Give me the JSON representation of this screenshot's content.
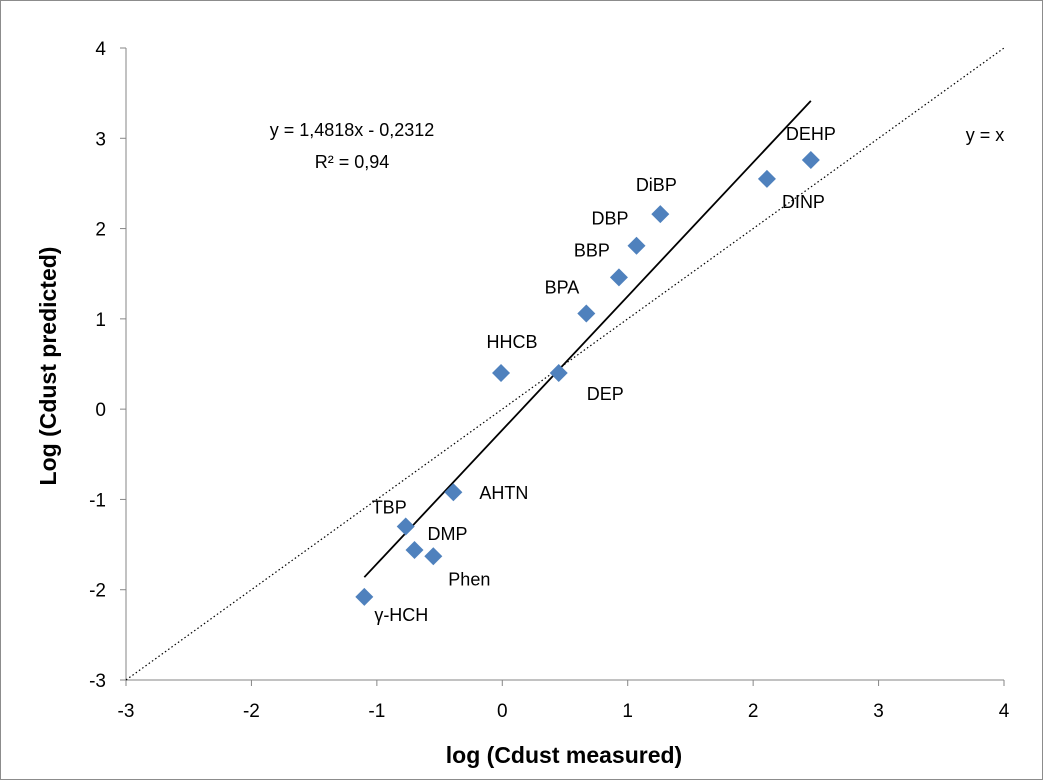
{
  "chart_data": {
    "type": "scatter",
    "xlabel": "log (Cdust measured)",
    "ylabel": "Log (Cdust predicted)",
    "xlim": [
      -3,
      4
    ],
    "ylim": [
      -3,
      4
    ],
    "xticks": [
      "-3",
      "-2",
      "-1",
      "0",
      "1",
      "2",
      "3",
      "4"
    ],
    "yticks": [
      "-3",
      "-2",
      "-1",
      "0",
      "1",
      "2",
      "3",
      "4"
    ],
    "grid": false,
    "marker_color": "#4f81bd",
    "points": [
      {
        "label": "DEHP",
        "x": 2.46,
        "y": 2.76
      },
      {
        "label": "DINP",
        "x": 2.11,
        "y": 2.55
      },
      {
        "label": "DiBP",
        "x": 1.26,
        "y": 2.16
      },
      {
        "label": "DBP",
        "x": 1.07,
        "y": 1.81
      },
      {
        "label": "BBP",
        "x": 0.93,
        "y": 1.46
      },
      {
        "label": "BPA",
        "x": 0.67,
        "y": 1.06
      },
      {
        "label": "HHCB",
        "x": -0.01,
        "y": 0.4
      },
      {
        "label": "DEP",
        "x": 0.45,
        "y": 0.4
      },
      {
        "label": "AHTN",
        "x": -0.39,
        "y": -0.92
      },
      {
        "label": "TBP",
        "x": -0.77,
        "y": -1.3
      },
      {
        "label": "DMP",
        "x": -0.7,
        "y": -1.56
      },
      {
        "label": "Phen",
        "x": -0.55,
        "y": -1.63
      },
      {
        "label": "γ-HCH",
        "x": -1.1,
        "y": -2.08
      }
    ],
    "trendline": {
      "slope": 1.4818,
      "intercept": -0.2312,
      "x_range": [
        -1.1,
        2.46
      ]
    },
    "identity_line": {
      "x_range": [
        -3,
        4
      ]
    },
    "equation_text": "y = 1,4818x - 0,2312",
    "r2_text": "R² = 0,94",
    "identity_text": "y = x"
  }
}
